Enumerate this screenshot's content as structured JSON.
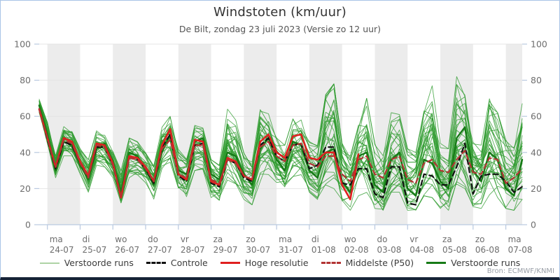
{
  "header": {
    "title": "Windstoten (km/uur)",
    "subtitle": "De Bilt, zondag 23 juli 2023 (Versie zo 12 uur)"
  },
  "attribution": "Bron: ECMWF/KNMI",
  "legend": [
    {
      "label": "Verstoorde runs",
      "color": "#aed3a5",
      "style": "solid",
      "thick": 2
    },
    {
      "label": "Controle",
      "color": "#111111",
      "style": "dashed",
      "thick": 3
    },
    {
      "label": "Hoge resolutie",
      "color": "#e01f1f",
      "style": "solid",
      "thick": 3
    },
    {
      "label": "Middelste (P50)",
      "color": "#b23434",
      "style": "dashed",
      "thick": 3
    },
    {
      "label": "Verstoorde runs",
      "color": "#167a16",
      "style": "solid",
      "thick": 3
    }
  ],
  "chart_data": {
    "type": "line",
    "title": "Windstoten (km/uur)",
    "subtitle": "De Bilt, zondag 23 juli 2023 (Versie zo 12 uur)",
    "ylabel": "km/uur",
    "ylim": [
      0,
      100
    ],
    "yticks": [
      0,
      20,
      40,
      60,
      80,
      100
    ],
    "grid": "horizontal",
    "legend_position": "bottom",
    "x_step_hours": 6,
    "x_days": [
      {
        "weekday": "ma",
        "date": "24-07"
      },
      {
        "weekday": "di",
        "date": "25-07"
      },
      {
        "weekday": "wo",
        "date": "26-07"
      },
      {
        "weekday": "do",
        "date": "27-07"
      },
      {
        "weekday": "vr",
        "date": "28-07"
      },
      {
        "weekday": "za",
        "date": "29-07"
      },
      {
        "weekday": "zo",
        "date": "30-07"
      },
      {
        "weekday": "ma",
        "date": "31-07"
      },
      {
        "weekday": "di",
        "date": "01-08"
      },
      {
        "weekday": "wo",
        "date": "02-08"
      },
      {
        "weekday": "do",
        "date": "03-08"
      },
      {
        "weekday": "vr",
        "date": "04-08"
      },
      {
        "weekday": "za",
        "date": "05-08"
      },
      {
        "weekday": "zo",
        "date": "06-08"
      },
      {
        "weekday": "ma",
        "date": "07-08"
      }
    ],
    "series": [
      {
        "name": "Hoge resolutie",
        "color": "#e01f1f",
        "dash": null,
        "width": 2.6,
        "values": [
          64,
          48,
          32,
          48,
          46,
          35,
          27,
          45,
          44,
          34,
          15,
          38,
          37,
          32,
          24,
          44,
          53,
          28,
          25,
          47,
          46,
          24,
          22,
          37,
          35,
          27,
          25,
          46,
          50,
          40,
          37,
          49,
          50,
          37,
          36,
          40,
          40,
          22,
          14,
          39
        ]
      },
      {
        "name": "Controle",
        "color": "#111111",
        "dash": "7,5",
        "width": 2.2,
        "values": [
          64,
          47,
          31,
          46,
          44,
          34,
          26,
          43,
          43,
          33,
          15,
          37,
          36,
          31,
          23,
          43,
          50,
          27,
          24,
          44,
          45,
          23,
          21,
          36,
          34,
          26,
          24,
          44,
          48,
          38,
          35,
          44,
          45,
          31,
          33,
          43,
          43,
          23,
          22,
          31,
          31,
          17,
          15,
          32,
          32,
          12,
          11,
          28,
          27,
          22,
          22,
          32,
          45,
          17,
          27,
          28,
          28,
          24,
          18,
          21
        ]
      },
      {
        "name": "Middelste (P50)",
        "color": "#b23434",
        "dash": "7,5",
        "width": 2.2,
        "values": [
          64,
          48,
          32,
          47,
          45,
          34,
          26,
          44,
          43,
          33,
          16,
          37,
          36,
          31,
          24,
          42,
          47,
          28,
          26,
          44,
          44,
          25,
          23,
          36,
          34,
          27,
          25,
          43,
          46,
          38,
          35,
          44,
          45,
          34,
          32,
          38,
          38,
          28,
          24,
          36,
          38,
          28,
          26,
          36,
          38,
          25,
          23,
          34,
          36,
          30,
          29,
          36,
          41,
          29,
          28,
          37,
          36,
          23,
          26,
          31
        ]
      },
      {
        "name": "Verstoorde runs (uitgelicht)",
        "color": "#167a16",
        "dash": null,
        "width": 2.4,
        "values": [
          66,
          50,
          30,
          46,
          44,
          33,
          25,
          42,
          45,
          35,
          18,
          40,
          38,
          30,
          22,
          40,
          50,
          30,
          28,
          46,
          48,
          28,
          25,
          40,
          38,
          28,
          22,
          42,
          48,
          36,
          30,
          46,
          44,
          30,
          26,
          40,
          42,
          24,
          18,
          38,
          40,
          22,
          18,
          36,
          40,
          20,
          16,
          36,
          34,
          24,
          20,
          48,
          54,
          30,
          24,
          40,
          36,
          20,
          16,
          36
        ]
      }
    ],
    "ensemble": {
      "name": "Verstoorde runs",
      "color": "#2e9b2e",
      "count": 34,
      "seed": 11,
      "envelope_min": [
        62,
        45,
        26,
        38,
        36,
        28,
        18,
        33,
        32,
        26,
        12,
        26,
        26,
        22,
        14,
        30,
        33,
        18,
        15,
        30,
        30,
        14,
        11,
        22,
        20,
        14,
        11,
        24,
        26,
        20,
        16,
        26,
        26,
        18,
        14,
        22,
        20,
        10,
        8,
        16,
        16,
        9,
        8,
        18,
        18,
        8,
        8,
        16,
        15,
        9,
        8,
        18,
        20,
        10,
        9,
        16,
        15,
        9,
        8,
        14
      ],
      "envelope_max": [
        70,
        58,
        40,
        55,
        52,
        42,
        36,
        52,
        50,
        42,
        30,
        48,
        46,
        40,
        34,
        55,
        60,
        42,
        38,
        55,
        54,
        36,
        33,
        64,
        58,
        40,
        36,
        66,
        62,
        48,
        44,
        60,
        58,
        46,
        44,
        72,
        78,
        45,
        38,
        58,
        70,
        45,
        40,
        62,
        61,
        42,
        40,
        65,
        78,
        45,
        42,
        82,
        75,
        50,
        46,
        72,
        62,
        48,
        45,
        67
      ]
    },
    "band_color": "#ececec",
    "grid_color": "#e4e4e4",
    "axis_color": "#b9c9e0",
    "tick_label_color": "#6e6e6e"
  }
}
